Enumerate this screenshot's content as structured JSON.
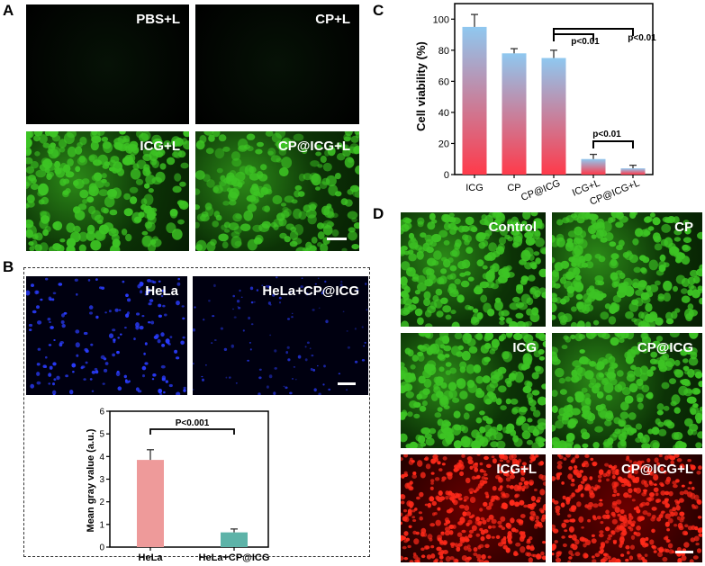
{
  "panel_letters": {
    "a": "A",
    "b": "B",
    "c": "C",
    "d": "D"
  },
  "panel_a": {
    "images": [
      {
        "label": "PBS+L",
        "style": "dark-faint"
      },
      {
        "label": "CP+L",
        "style": "dark-faint"
      },
      {
        "label": "ICG+L",
        "style": "green-cells"
      },
      {
        "label": "CP@ICG+L",
        "style": "green-cells"
      }
    ]
  },
  "panel_b": {
    "images": [
      {
        "label": "HeLa",
        "style": "blue-nuclei"
      },
      {
        "label": "HeLa+CP@ICG",
        "style": "blue-nuclei-sparse"
      }
    ]
  },
  "panel_d": {
    "images": [
      {
        "label": "Control",
        "style": "green"
      },
      {
        "label": "CP",
        "style": "green"
      },
      {
        "label": "ICG",
        "style": "green"
      },
      {
        "label": "CP@ICG",
        "style": "green"
      },
      {
        "label": "ICG+L",
        "style": "red"
      },
      {
        "label": "CP@ICG+L",
        "style": "red"
      }
    ]
  },
  "colors": {
    "green_cells": "#3dc424",
    "red_cells": "#ff2a1a",
    "blue_nuclei": "#2a3cff",
    "bar_hela": "#ee9a9a",
    "bar_hela_cp": "#5db3a8",
    "grad_top": "#8fc8f0",
    "grad_bottom": "#ff3a4a"
  },
  "chart_data": [
    {
      "type": "bar",
      "panel": "C",
      "title": "",
      "xlabel": "",
      "ylabel": "Cell viability (%)",
      "ylim": [
        0,
        110
      ],
      "yticks": [
        0,
        20,
        40,
        60,
        80,
        100
      ],
      "categories": [
        "ICG",
        "CP",
        "CP@ICG",
        "ICG+L",
        "CP@ICG+L"
      ],
      "values": [
        95,
        78,
        75,
        10,
        4
      ],
      "errors": [
        8,
        3,
        5,
        3,
        2
      ],
      "annotations": [
        {
          "text": "p<0.01",
          "from": "CP@ICG",
          "to": "ICG+L"
        },
        {
          "text": "p<0.01",
          "from": "CP@ICG",
          "to": "CP@ICG+L"
        },
        {
          "text": "p<0.01",
          "from": "ICG+L",
          "to": "CP@ICG+L"
        }
      ],
      "grid": false
    },
    {
      "type": "bar",
      "panel": "B",
      "title": "",
      "xlabel": "",
      "ylabel": "Mean gray value (a.u.)",
      "ylim": [
        0,
        6
      ],
      "yticks": [
        0,
        1,
        2,
        3,
        4,
        5,
        6
      ],
      "categories": [
        "HeLa",
        "HeLa+CP@ICG"
      ],
      "values": [
        3.85,
        0.65
      ],
      "errors": [
        0.45,
        0.15
      ],
      "annotations": [
        {
          "text": "P<0.001",
          "from": "HeLa",
          "to": "HeLa+CP@ICG"
        }
      ],
      "grid": false
    }
  ]
}
